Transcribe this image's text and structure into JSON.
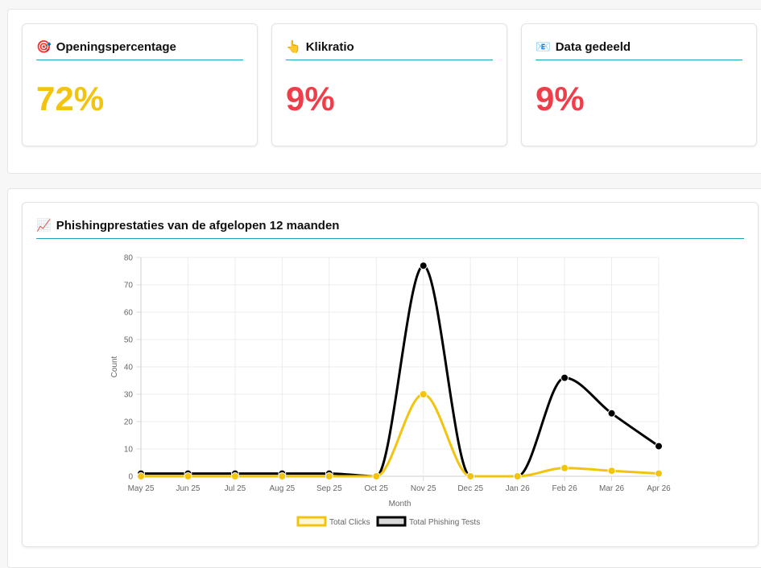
{
  "metrics": [
    {
      "icon": "🎯",
      "title": "Openingspercentage",
      "value": "72%",
      "color": "#f2c40f"
    },
    {
      "icon": "👆",
      "title": "Klikratio",
      "value": "9%",
      "color": "#ef3e4a"
    },
    {
      "icon": "📧",
      "title": "Data gedeeld",
      "value": "9%",
      "color": "#ef3e4a"
    }
  ],
  "chart_section": {
    "icon": "📈",
    "title": "Phishingprestaties van de afgelopen 12 maanden"
  },
  "chart_data": {
    "type": "line",
    "categories": [
      "May 25",
      "Jun 25",
      "Jul 25",
      "Aug 25",
      "Sep 25",
      "Oct 25",
      "Nov 25",
      "Dec 25",
      "Jan 26",
      "Feb 26",
      "Mar 26",
      "Apr 26"
    ],
    "series": [
      {
        "name": "Total Clicks",
        "values": [
          0,
          0,
          0,
          0,
          0,
          0,
          30,
          0,
          0,
          3,
          2,
          1
        ],
        "color": "#f2c40f"
      },
      {
        "name": "Total Phishing Tests",
        "values": [
          1,
          1,
          1,
          1,
          1,
          0,
          77,
          0,
          0,
          36,
          23,
          11
        ],
        "color": "#000000"
      }
    ],
    "xlabel": "Month",
    "ylabel": "Count",
    "ylim": [
      0,
      80
    ],
    "yticks": [
      "0",
      "10",
      "20",
      "30",
      "40",
      "50",
      "60",
      "70",
      "80"
    ],
    "grid": true,
    "legend_position": "bottom"
  }
}
